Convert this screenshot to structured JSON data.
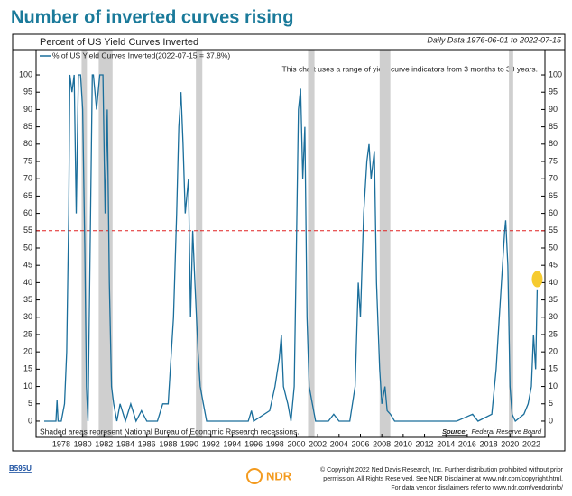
{
  "chart_data": {
    "type": "line",
    "title": "Number of inverted curves rising",
    "subtitle": "Percent of US Yield Curves Inverted",
    "date_range": "Daily Data 1976-06-01 to 2022-07-15",
    "note": "This chart uses a range of yield curve indicators from 3 months to 30 years.",
    "recession_note": "Shaded areas represent National Bureau of Economic Research recessions.",
    "source_label": "Source:",
    "source": "Federal Reserve Board",
    "series": [
      {
        "name": "% of US Yield Curves Inverted(2022-07-15 = 37.8%)",
        "color": "#1a6e9b",
        "x": [
          1976.4,
          1977.5,
          1977.6,
          1977.7,
          1978.0,
          1978.3,
          1978.5,
          1978.7,
          1978.8,
          1979.0,
          1979.2,
          1979.4,
          1979.6,
          1979.8,
          1980.0,
          1980.2,
          1980.35,
          1980.5,
          1980.7,
          1980.9,
          1981.0,
          1981.3,
          1981.6,
          1981.9,
          1982.1,
          1982.3,
          1982.5,
          1982.7,
          1982.9,
          1983.2,
          1983.5,
          1984.0,
          1984.5,
          1985.0,
          1985.5,
          1986.0,
          1987.0,
          1987.5,
          1988.0,
          1988.5,
          1988.8,
          1989.0,
          1989.2,
          1989.4,
          1989.6,
          1989.9,
          1990.1,
          1990.3,
          1990.5,
          1990.8,
          1991.0,
          1991.3,
          1991.6,
          1992.0,
          1995.5,
          1995.8,
          1996.0,
          1997.5,
          1998.0,
          1998.4,
          1998.6,
          1998.8,
          1999.2,
          1999.5,
          1999.8,
          2000.0,
          2000.2,
          2000.4,
          2000.6,
          2000.8,
          2001.0,
          2001.2,
          2001.5,
          2001.8,
          2003.0,
          2003.5,
          2004.0,
          2005.0,
          2005.5,
          2005.8,
          2006.0,
          2006.3,
          2006.6,
          2006.8,
          2007.0,
          2007.3,
          2007.5,
          2007.8,
          2008.0,
          2008.3,
          2008.5,
          2008.8,
          2009.2,
          2015.0,
          2016.5,
          2017.0,
          2018.3,
          2018.7,
          2019.0,
          2019.2,
          2019.5,
          2019.6,
          2019.8,
          2020.0,
          2020.2,
          2020.5,
          2021.3,
          2021.7,
          2022.0,
          2022.2,
          2022.4,
          2022.54
        ],
        "values": [
          0,
          0,
          6,
          0,
          0,
          5,
          20,
          60,
          100,
          95,
          100,
          60,
          100,
          100,
          90,
          50,
          10,
          0,
          50,
          100,
          100,
          90,
          100,
          100,
          60,
          90,
          40,
          10,
          5,
          0,
          5,
          0,
          5,
          0,
          3,
          0,
          0,
          5,
          5,
          30,
          60,
          85,
          95,
          80,
          60,
          70,
          30,
          55,
          40,
          20,
          10,
          5,
          0,
          0,
          0,
          3,
          0,
          3,
          10,
          18,
          25,
          10,
          5,
          0,
          10,
          50,
          90,
          96,
          70,
          85,
          30,
          10,
          5,
          0,
          0,
          2,
          0,
          0,
          10,
          40,
          30,
          60,
          75,
          80,
          70,
          78,
          40,
          15,
          5,
          10,
          3,
          2,
          0,
          0,
          2,
          0,
          2,
          15,
          30,
          40,
          55,
          58,
          45,
          10,
          2,
          0,
          2,
          5,
          10,
          25,
          15,
          37.8
        ]
      }
    ],
    "recessions": [
      [
        1979.9,
        1980.4
      ],
      [
        1981.5,
        1982.8
      ],
      [
        1990.6,
        1991.2
      ],
      [
        2001.1,
        2001.7
      ],
      [
        2007.8,
        2008.8
      ],
      [
        2019.9,
        2020.3
      ]
    ],
    "reference_line": 55,
    "highlight": {
      "x": 2022.55,
      "y": 41
    },
    "xlim": [
      1975.64,
      2023.27
    ],
    "xticks": [
      1978,
      1980,
      1982,
      1984,
      1986,
      1988,
      1990,
      1992,
      1994,
      1996,
      1998,
      2000,
      2002,
      2004,
      2006,
      2008,
      2010,
      2012,
      2014,
      2016,
      2018,
      2020,
      2022
    ],
    "ylim": [
      -4.7,
      107.3
    ],
    "yticks": [
      0,
      5,
      10,
      15,
      20,
      25,
      30,
      35,
      40,
      45,
      50,
      55,
      60,
      65,
      70,
      75,
      80,
      85,
      90,
      95,
      100
    ]
  },
  "footer": {
    "code": "B595U",
    "logo": "NDR",
    "lines": [
      "© Copyright 2022 Ned Davis Research, Inc. Further distribution prohibited without prior",
      "permission. All Rights Reserved. See NDR Disclaimer at www.ndr.com/copyright.html.",
      "For data vendor disclaimers refer to www.ndr.com/vendorinfo/"
    ]
  }
}
